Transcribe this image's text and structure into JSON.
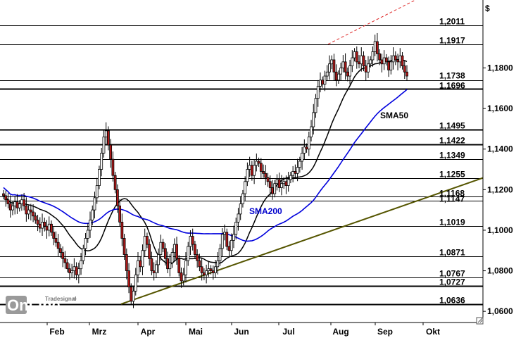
{
  "currency_symbol": "$",
  "logo": {
    "brand": "Tradesignal",
    "text": "OnLine",
    "reg": "®"
  },
  "chart_data": {
    "type": "candlestick",
    "xaxis": {
      "months": [
        "Feb",
        "Mrz",
        "Apr",
        "Mai",
        "Jun",
        "Jul",
        "Aug",
        "Sep",
        "Okt"
      ]
    },
    "yaxis": {
      "ticks": [
        "1,0600",
        "1,0800",
        "1,1000",
        "1,1200",
        "1,1400",
        "1,1600",
        "1,1800"
      ],
      "tick_values": [
        1.06,
        1.08,
        1.1,
        1.12,
        1.14,
        1.16,
        1.18
      ],
      "range": [
        1.0545,
        1.2135
      ]
    },
    "levels": [
      {
        "label": "1,2011",
        "value": 1.2011,
        "weight": "thin"
      },
      {
        "label": "1,1917",
        "value": 1.1917,
        "weight": "thin"
      },
      {
        "label": "1,1738",
        "value": 1.1738,
        "weight": "thin"
      },
      {
        "label": "1,1696",
        "value": 1.1696,
        "weight": "thick"
      },
      {
        "label": "1,1495",
        "value": 1.1495,
        "weight": "thick"
      },
      {
        "label": "1,1422",
        "value": 1.1422,
        "weight": "thick"
      },
      {
        "label": "1,1349",
        "value": 1.1349,
        "weight": "thin"
      },
      {
        "label": "1,1255",
        "value": 1.1255,
        "weight": "thin"
      },
      {
        "label": "1,1168",
        "value": 1.1168,
        "weight": "thin"
      },
      {
        "label": "1,1147",
        "value": 1.1147,
        "weight": "thin"
      },
      {
        "label": "1,1019",
        "value": 1.1019,
        "weight": "thin"
      },
      {
        "label": "1,0871",
        "value": 1.0871,
        "weight": "thin"
      },
      {
        "label": "1,0767",
        "value": 1.0767,
        "weight": "thin"
      },
      {
        "label": "1,0727",
        "value": 1.0727,
        "weight": "thick"
      },
      {
        "label": "1,0636",
        "value": 1.0636,
        "weight": "thick"
      }
    ],
    "annotations": [
      {
        "text": "SMA50",
        "color": "#000000"
      },
      {
        "text": "SMA200",
        "color": "#0000cc"
      }
    ],
    "closes": [
      1.117,
      1.115,
      1.113,
      1.11,
      1.112,
      1.114,
      1.111,
      1.113,
      1.115,
      1.112,
      1.108,
      1.11,
      1.109,
      1.107,
      1.105,
      1.103,
      1.101,
      1.104,
      1.102,
      1.1,
      1.103,
      1.099,
      1.096,
      1.094,
      1.091,
      1.089,
      1.086,
      1.084,
      1.081,
      1.079,
      1.08,
      1.082,
      1.078,
      1.081,
      1.085,
      1.091,
      1.096,
      1.1,
      1.105,
      1.11,
      1.116,
      1.122,
      1.13,
      1.138,
      1.146,
      1.149,
      1.142,
      1.135,
      1.127,
      1.12,
      1.112,
      1.104,
      1.096,
      1.088,
      1.08,
      1.072,
      1.065,
      1.07,
      1.078,
      1.085,
      1.082,
      1.09,
      1.097,
      1.093,
      1.086,
      1.08,
      1.079,
      1.083,
      1.088,
      1.094,
      1.091,
      1.086,
      1.081,
      1.084,
      1.089,
      1.093,
      1.086,
      1.079,
      1.075,
      1.078,
      1.085,
      1.092,
      1.097,
      1.093,
      1.088,
      1.085,
      1.082,
      1.079,
      1.078,
      1.08,
      1.081,
      1.08,
      1.079,
      1.082,
      1.085,
      1.091,
      1.098,
      1.099,
      1.092,
      1.09,
      1.095,
      1.098,
      1.104,
      1.108,
      1.113,
      1.118,
      1.124,
      1.13,
      1.132,
      1.127,
      1.132,
      1.134,
      1.133,
      1.129,
      1.128,
      1.126,
      1.124,
      1.121,
      1.118,
      1.123,
      1.125,
      1.121,
      1.123,
      1.124,
      1.122,
      1.125,
      1.127,
      1.129,
      1.128,
      1.131,
      1.134,
      1.138,
      1.141,
      1.14,
      1.146,
      1.151,
      1.158,
      1.165,
      1.171,
      1.174,
      1.172,
      1.176,
      1.178,
      1.182,
      1.184,
      1.178,
      1.174,
      1.177,
      1.18,
      1.183,
      1.178,
      1.176,
      1.181,
      1.185,
      1.188,
      1.183,
      1.182,
      1.186,
      1.181,
      1.178,
      1.182,
      1.184,
      1.188,
      1.193,
      1.187,
      1.184,
      1.182,
      1.185,
      1.183,
      1.179,
      1.183,
      1.186,
      1.184,
      1.183,
      1.186,
      1.181,
      1.178,
      1.176
    ]
  }
}
